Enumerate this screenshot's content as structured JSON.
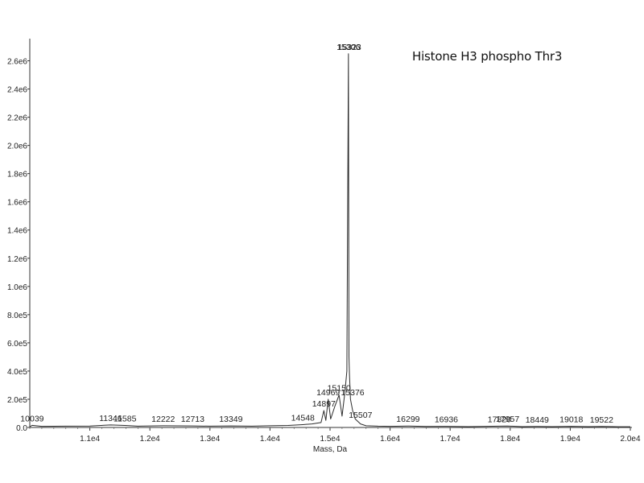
{
  "chart_data": {
    "type": "line",
    "title": "Histone H3 phospho Thr3",
    "xlabel": "Mass, Da",
    "ylabel": "",
    "xlim": [
      10000,
      20000
    ],
    "ylim": [
      0,
      2700000
    ],
    "x_ticks": [
      11000,
      12000,
      13000,
      14000,
      15000,
      16000,
      17000,
      18000,
      19000,
      20000
    ],
    "x_tick_labels": [
      "1.1e4",
      "1.2e4",
      "1.3e4",
      "1.4e4",
      "1.5e4",
      "1.6e4",
      "1.7e4",
      "1.8e4",
      "1.9e4",
      "2.0e4"
    ],
    "y_ticks": [
      0,
      200000,
      400000,
      600000,
      800000,
      1000000,
      1200000,
      1400000,
      1600000,
      1800000,
      2000000,
      2200000,
      2400000,
      2600000
    ],
    "y_tick_labels": [
      "0.0",
      "2.0e5",
      "4.0e5",
      "6.0e5",
      "8.0e5",
      "1.0e6",
      "1.2e6",
      "1.4e6",
      "1.6e6",
      "1.8e6",
      "2.0e6",
      "2.2e6",
      "2.4e6",
      "2.6e6"
    ],
    "grid": false,
    "legend": "none",
    "line_color": "#2b2b2b",
    "peak_labels": [
      "10039",
      "11346",
      "11585",
      "12222",
      "12713",
      "13349",
      "14548",
      "14897",
      "14969",
      "15150",
      "15306",
      "15323",
      "15376",
      "15507",
      "16299",
      "16936",
      "17820",
      "17957",
      "18449",
      "19018",
      "19522"
    ],
    "series": [
      {
        "x": [
          10000,
          10039,
          10200,
          10600,
          11000,
          11346,
          11585,
          11800,
          12222,
          12713,
          13000,
          13349,
          13700,
          14000,
          14300,
          14548,
          14700,
          14850,
          14897,
          14930,
          14969,
          15010,
          15080,
          15150,
          15200,
          15250,
          15280,
          15306,
          15315,
          15323,
          15340,
          15376,
          15420,
          15470,
          15507,
          15600,
          15800,
          16000,
          16299,
          16600,
          16936,
          17300,
          17820,
          17957,
          18200,
          18449,
          18700,
          19018,
          19300,
          19522,
          19800,
          20000
        ],
        "y": [
          5000,
          15000,
          8000,
          9000,
          10000,
          18000,
          14000,
          9000,
          12000,
          11000,
          9000,
          11000,
          9000,
          12000,
          14000,
          20000,
          25000,
          35000,
          120000,
          50000,
          200000,
          60000,
          150000,
          230000,
          80000,
          260000,
          400000,
          2650000,
          500000,
          380000,
          200000,
          120000,
          60000,
          40000,
          25000,
          12000,
          9000,
          8000,
          10000,
          7000,
          8000,
          6000,
          9000,
          10000,
          6000,
          7000,
          6000,
          8000,
          6000,
          7000,
          5000,
          5000
        ]
      }
    ]
  }
}
